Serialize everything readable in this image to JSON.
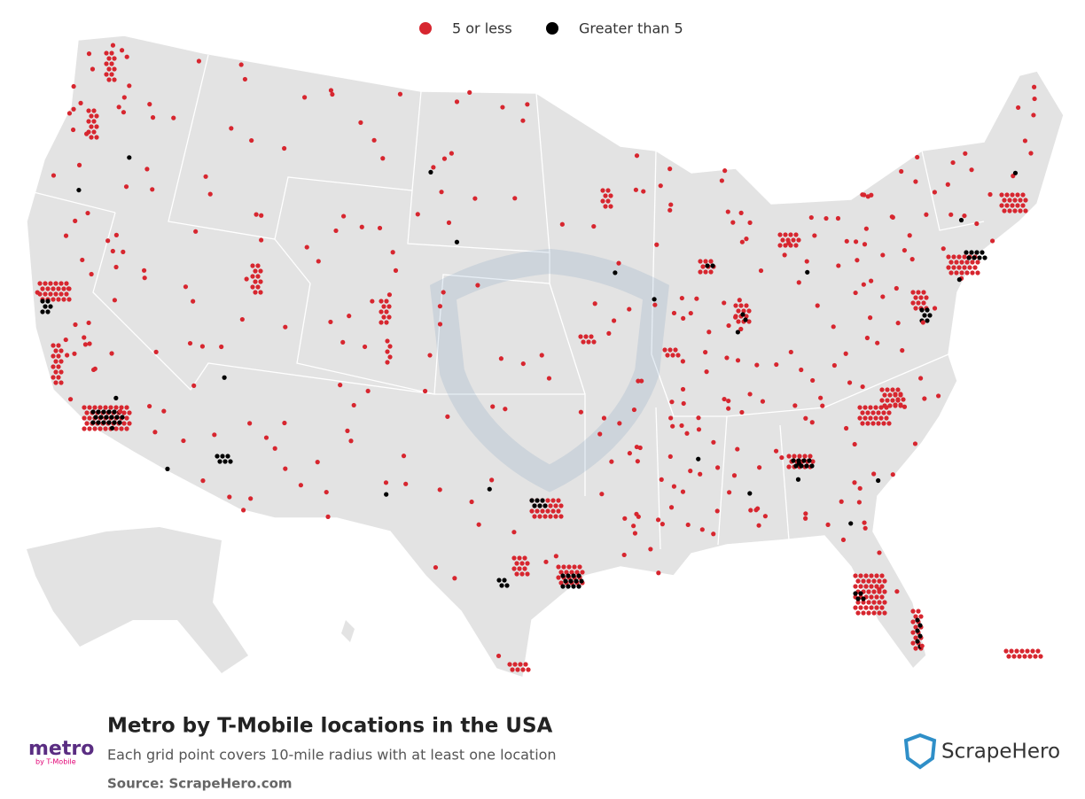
{
  "legend": [
    {
      "label": "5 or less",
      "color": "#d7262f"
    },
    {
      "label": "Greater than 5",
      "color": "#000000"
    }
  ],
  "footer": {
    "title": "Metro by T-Mobile locations in the USA",
    "subtitle": "Each grid point covers 10-mile radius with at least one location",
    "source": "Source: ScrapeHero.com"
  },
  "logos": {
    "brand": "metro",
    "brand_sub": "by T-Mobile",
    "publisher": "ScrapeHero"
  }
}
